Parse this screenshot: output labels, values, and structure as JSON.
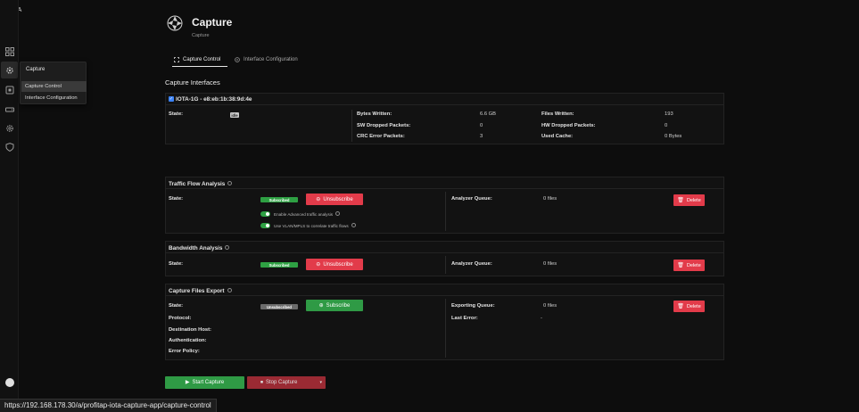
{
  "brand": "IOTA",
  "flyout": {
    "title": "Capture",
    "items": [
      "Capture Control",
      "Interface Configuration"
    ]
  },
  "header": {
    "title": "Capture",
    "subtitle": "Capture"
  },
  "tabs": [
    {
      "label": "Capture Control",
      "active": true
    },
    {
      "label": "Interface Configuration",
      "active": false
    }
  ],
  "capture_interfaces": {
    "heading": "Capture Interfaces",
    "interface_name": "IOTA-1G - e8:eb:1b:38:9d:4e",
    "checked": true,
    "state_label": "State:",
    "state_value": "idle",
    "stats_mid": [
      {
        "label": "Bytes Written:",
        "value": "6.6 GB"
      },
      {
        "label": "SW Dropped Packets:",
        "value": "0"
      },
      {
        "label": "CRC Error Packets:",
        "value": "3"
      }
    ],
    "stats_right": [
      {
        "label": "Files Written:",
        "value": "193"
      },
      {
        "label": "HW Dropped Packets:",
        "value": "0"
      },
      {
        "label": "Used Cache:",
        "value": "0 Bytes"
      }
    ]
  },
  "traffic_flow": {
    "title": "Traffic Flow Analysis",
    "state_label": "State:",
    "state_badge": "Subscribed",
    "action_button": "Unsubscribe",
    "toggles": [
      "Enable Advanced traffic analysis",
      "Use VLAN/MPLS to correlate traffic flows"
    ],
    "queue_label": "Analyzer Queue:",
    "queue_value": "0 files",
    "delete_button": "Delete"
  },
  "bandwidth": {
    "title": "Bandwidth Analysis",
    "state_label": "State:",
    "state_badge": "Subscribed",
    "action_button": "Unsubscribe",
    "queue_label": "Analyzer Queue:",
    "queue_value": "0 files",
    "delete_button": "Delete"
  },
  "export": {
    "title": "Capture Files Export",
    "state_label": "State:",
    "state_badge": "Unsubscribed",
    "action_button": "Subscribe",
    "fields": [
      "Protocol:",
      "Destination Host:",
      "Authentication:",
      "Error Policy:"
    ],
    "queue_label": "Exporting Queue:",
    "queue_value": "0 files",
    "last_error_label": "Last Error:",
    "last_error_value": "-",
    "delete_button": "Delete"
  },
  "footer": {
    "start_button": "Start Capture",
    "stop_button": "Stop Capture"
  },
  "status_url": "https://192.168.178.30/a/profitap-iota-capture-app/capture-control",
  "colors": {
    "accent_green": "#2ea043",
    "accent_red": "#e23b4a",
    "background": "#0d0d0d"
  },
  "icons": [
    "dashboard-icon",
    "settings-gear-icon",
    "capture-icon",
    "storage-icon",
    "cog-icon",
    "shield-icon"
  ]
}
